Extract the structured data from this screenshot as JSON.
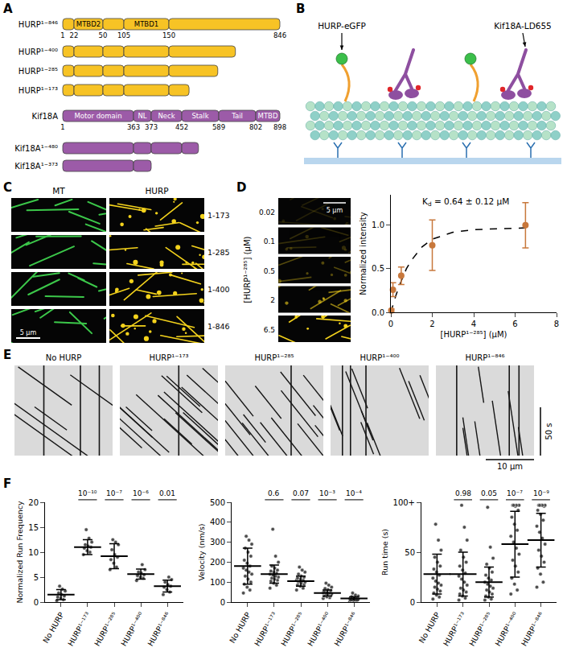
{
  "diagram": {
    "panel_a": {
      "letter": "A",
      "proteins": [
        {
          "color": "#f7c325",
          "boundaries": [
            1,
            22,
            50,
            105,
            150,
            846
          ],
          "domains": [
            {
              "label": "MTBD2",
              "start": 22,
              "end": 50
            },
            {
              "label": "MTBD1",
              "start": 105,
              "end": 150
            }
          ],
          "constructs": [
            {
              "label": "HURP¹⁻⁸⁴⁶",
              "end": 846
            },
            {
              "label": "HURP¹⁻⁴⁰⁰",
              "end": 400
            },
            {
              "label": "HURP¹⁻²⁸⁵",
              "end": 285
            },
            {
              "label": "HURP¹⁻¹⁷³",
              "end": 173
            }
          ]
        },
        {
          "color": "#9c5ba8",
          "boundaries": [
            1,
            363,
            373,
            452,
            589,
            802,
            898
          ],
          "domains": [
            {
              "label": "Motor domain",
              "start": 1,
              "end": 363
            },
            {
              "label": "NL",
              "start": 363,
              "end": 373
            },
            {
              "label": "Neck",
              "start": 373,
              "end": 452
            },
            {
              "label": "Stalk",
              "start": 452,
              "end": 589
            },
            {
              "label": "Tail",
              "start": 589,
              "end": 802
            },
            {
              "label": "MTBD",
              "start": 802,
              "end": 898
            }
          ],
          "constructs": [
            {
              "label": "Kif18A",
              "end": 898
            },
            {
              "label": "Kif18A¹⁻⁴⁸⁰",
              "end": 480
            },
            {
              "label": "Kif18A¹⁻³⁷³",
              "end": 373
            }
          ]
        }
      ]
    },
    "panel_b": {
      "letter": "B",
      "labels": [
        "HURP-eGFP",
        "Kif18A-LD655"
      ]
    },
    "panel_c": {
      "letter": "C",
      "columns": [
        "MT",
        "HURP"
      ],
      "rows": [
        "1-173",
        "1-285",
        "1-400",
        "1-846"
      ],
      "scale_bar": "5 μm"
    },
    "panel_d": {
      "letter": "D",
      "axis_label": "[HURP¹⁻²⁸⁵] (μM)",
      "concentrations": [
        0.02,
        0.1,
        0.5,
        2,
        6.5
      ],
      "scale_bar": "5 μm"
    },
    "panel_e": {
      "letter": "E",
      "titles": [
        "No HURP",
        "HURP¹⁻¹⁷³",
        "HURP¹⁻²⁸⁵",
        "HURP¹⁻⁴⁰⁰",
        "HURP¹⁻⁸⁴⁶"
      ],
      "time_bar": "50 s",
      "scale_bar": "10 μm"
    },
    "panel_f": {
      "letter": "F"
    }
  },
  "chart_data": [
    {
      "type": "scatter",
      "marker": "circle",
      "color": "#c8783c",
      "x": [
        0.02,
        0.1,
        0.5,
        2,
        6.5
      ],
      "values": [
        0.02,
        0.26,
        0.42,
        0.77,
        1.0
      ],
      "error": [
        0.02,
        0.08,
        0.1,
        0.29,
        0.26
      ],
      "fit": {
        "line_style": "dashed",
        "color": "#000000",
        "x": [
          0,
          0.25,
          0.5,
          0.75,
          1,
          1.5,
          2,
          3,
          4,
          5,
          6,
          6.5
        ],
        "values": [
          0,
          0.2,
          0.36,
          0.5,
          0.6,
          0.75,
          0.84,
          0.92,
          0.95,
          0.96,
          0.97,
          0.97
        ]
      },
      "annotation": {
        "symbol": "K",
        "subscript": "d",
        "text": " = 0.64 ± 0.12 μM"
      },
      "xlabel": "[HURP¹⁻²⁸⁵] (μM)",
      "ylabel": "Normalized intensity",
      "xlim": [
        0,
        8
      ],
      "xticks": [
        0,
        2,
        4,
        6,
        8
      ],
      "ylim": [
        0,
        1.35
      ],
      "yticks": [
        {
          "value": 0,
          "label": "0.0"
        },
        0.5,
        {
          "value": 1,
          "label": "1.0"
        }
      ],
      "grid": false
    },
    {
      "type": "scatter",
      "marker": "circle",
      "color": "#4d4d4d",
      "grid": false,
      "categories": [
        "No HURP",
        "HURP¹⁻¹⁷³",
        "HURP¹⁻²⁸⁵",
        "HURP¹⁻⁴⁰⁰",
        "HURP¹⁻⁸⁴⁶"
      ],
      "ylabel": "Normalized Run Frequency",
      "ylim": [
        0,
        20
      ],
      "yticks": [
        0,
        5,
        10,
        15,
        20
      ],
      "values": [
        [
          0.3,
          0.5,
          0.8,
          1.0,
          1.2,
          1.5,
          1.8,
          2.2,
          2.6,
          3.2
        ],
        [
          9.5,
          10,
          10.3,
          10.8,
          11,
          11.2,
          11.5,
          12,
          12.8,
          14.5
        ],
        [
          6.5,
          7,
          7.8,
          8.5,
          9,
          9.5,
          10.5,
          11.5,
          12,
          12.5
        ],
        [
          4.3,
          4.8,
          5,
          5.3,
          5.5,
          5.8,
          6,
          6.5,
          7.5
        ],
        [
          1.5,
          2,
          2.5,
          3,
          3.2,
          3.5,
          4,
          4.5,
          5
        ]
      ],
      "mean": [
        1.5,
        11,
        9.2,
        5.6,
        3.2
      ],
      "sd": [
        1,
        1.5,
        2.5,
        1,
        1.2
      ],
      "p_values": [
        {
          "category": "HURP¹⁻¹⁷³",
          "label": "10⁻¹⁰"
        },
        {
          "category": "HURP¹⁻²⁸⁵",
          "label": "10⁻⁷"
        },
        {
          "category": "HURP¹⁻⁴⁰⁰",
          "label": "10⁻⁶"
        },
        {
          "category": "HURP¹⁻⁸⁴⁶",
          "label": "0.01"
        }
      ]
    },
    {
      "type": "scatter",
      "marker": "circle",
      "color": "#4d4d4d",
      "grid": false,
      "categories": [
        "No HURP",
        "HURP¹⁻¹⁷³",
        "HURP¹⁻²⁸⁵",
        "HURP¹⁻⁴⁰⁰",
        "HURP¹⁻⁸⁴⁶"
      ],
      "ylabel": "Velocity (nm/s)",
      "ylim": [
        0,
        500
      ],
      "yticks": [
        0,
        100,
        200,
        300,
        400,
        500
      ],
      "values": [
        [
          45,
          60,
          75,
          90,
          100,
          115,
          130,
          140,
          150,
          160,
          170,
          180,
          195,
          210,
          230,
          250,
          270,
          290,
          310,
          330
        ],
        [
          70,
          85,
          95,
          105,
          110,
          115,
          120,
          125,
          130,
          135,
          140,
          145,
          150,
          155,
          160,
          170,
          180,
          200,
          230,
          365
        ],
        [
          60,
          70,
          80,
          85,
          90,
          95,
          100,
          100,
          105,
          105,
          110,
          110,
          115,
          120,
          125,
          130,
          140,
          150,
          160,
          175
        ],
        [
          18,
          22,
          26,
          30,
          33,
          36,
          38,
          40,
          42,
          44,
          46,
          48,
          50,
          53,
          57,
          62,
          68,
          75,
          85,
          95
        ],
        [
          3,
          5,
          7,
          9,
          10,
          12,
          13,
          14,
          15,
          16,
          17,
          18,
          19,
          20,
          22,
          24,
          27,
          30,
          35,
          45
        ]
      ],
      "mean": [
        180,
        140,
        105,
        45,
        18
      ],
      "sd": [
        90,
        45,
        25,
        15,
        8
      ],
      "p_values": [
        {
          "category": "HURP¹⁻¹⁷³",
          "label": "0.6"
        },
        {
          "category": "HURP¹⁻²⁸⁵",
          "label": "0.07"
        },
        {
          "category": "HURP¹⁻⁴⁰⁰",
          "label": "10⁻³"
        },
        {
          "category": "HURP¹⁻⁸⁴⁶",
          "label": "10⁻⁴"
        }
      ]
    },
    {
      "type": "scatter",
      "marker": "circle",
      "color": "#4d4d4d",
      "grid": false,
      "categories": [
        "No HURP",
        "HURP¹⁻¹⁷³",
        "HURP¹⁻²⁸⁵",
        "HURP¹⁻⁴⁰⁰",
        "HURP¹⁻⁸⁴⁶"
      ],
      "ylabel": "Run time (s)",
      "ylim": [
        0,
        100
      ],
      "yticks": [
        0,
        50,
        {
          "value": 100,
          "label": "100+"
        }
      ],
      "values": [
        [
          3,
          5,
          7,
          9,
          11,
          13,
          15,
          17,
          19,
          21,
          24,
          27,
          30,
          33,
          36,
          40,
          45,
          52,
          62,
          78
        ],
        [
          2,
          4,
          6,
          8,
          10,
          12,
          14,
          17,
          20,
          23,
          26,
          29,
          32,
          36,
          40,
          45,
          52,
          62,
          75,
          97
        ],
        [
          2,
          3,
          5,
          6,
          8,
          10,
          12,
          14,
          16,
          18,
          20,
          22,
          24,
          27,
          30,
          34,
          38,
          44,
          55,
          95
        ],
        [
          8,
          12,
          18,
          24,
          30,
          36,
          42,
          48,
          54,
          60,
          66,
          72,
          78,
          85,
          92,
          96,
          97,
          97,
          97,
          97
        ],
        [
          15,
          20,
          28,
          34,
          40,
          46,
          52,
          58,
          64,
          70,
          76,
          82,
          88,
          92,
          96,
          97,
          97,
          97,
          97,
          97
        ]
      ],
      "mean": [
        28,
        28,
        20,
        58,
        62
      ],
      "sd": [
        20,
        22,
        15,
        33,
        27
      ],
      "p_values": [
        {
          "category": "HURP¹⁻¹⁷³",
          "label": "0.98"
        },
        {
          "category": "HURP¹⁻²⁸⁵",
          "label": "0.05"
        },
        {
          "category": "HURP¹⁻⁴⁰⁰",
          "label": "10⁻⁷"
        },
        {
          "category": "HURP¹⁻⁸⁴⁶",
          "label": "10⁻⁹"
        }
      ]
    }
  ]
}
